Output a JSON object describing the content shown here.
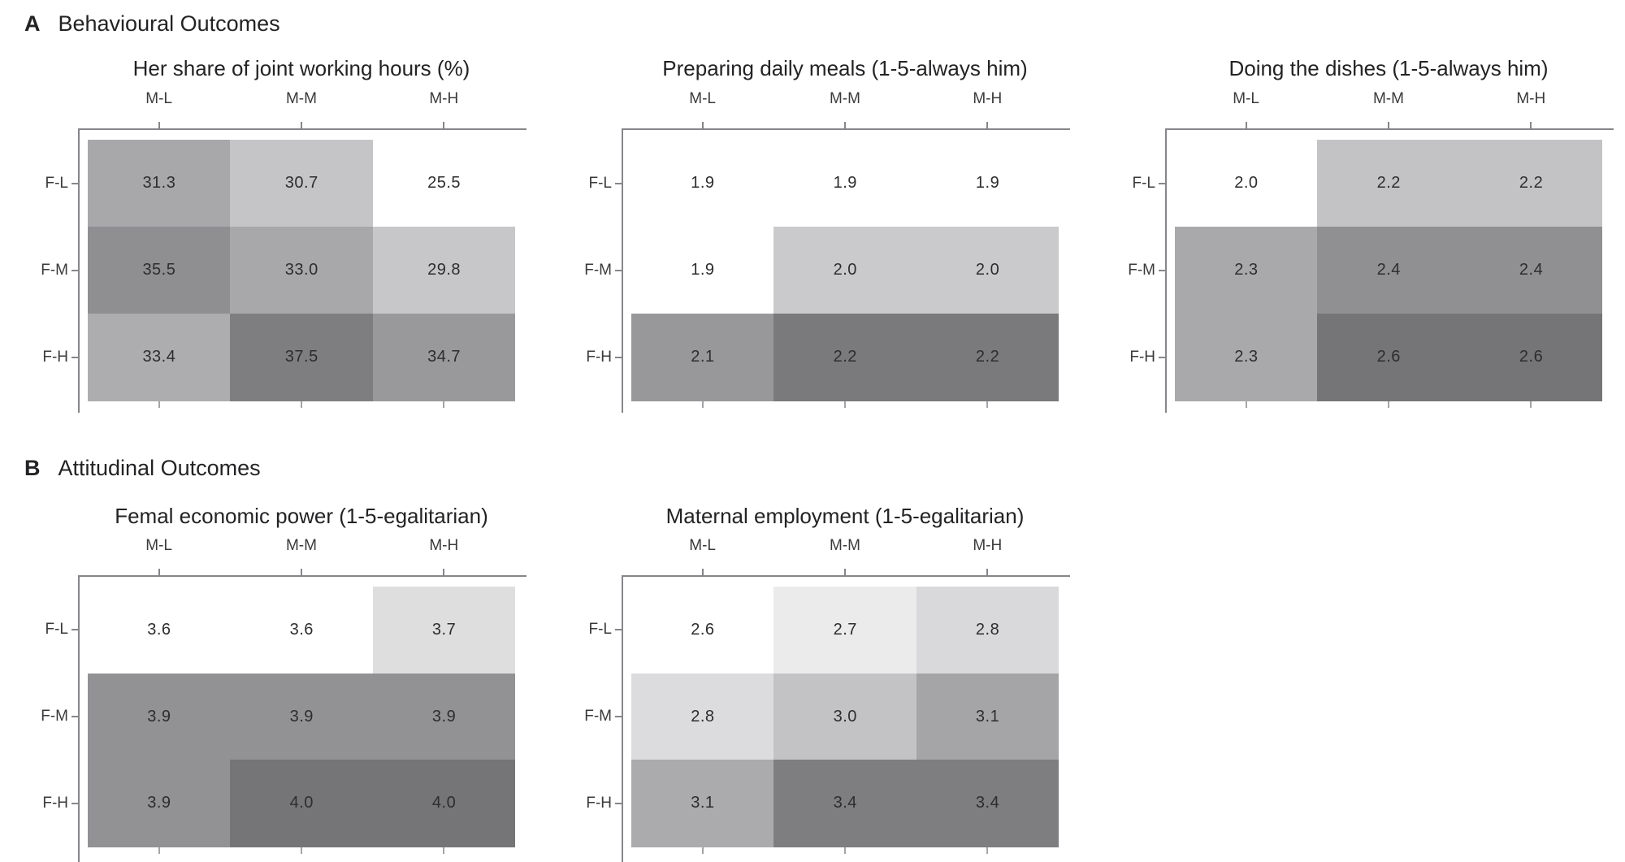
{
  "panel_a": {
    "letter": "A",
    "title": "Behavioural Outcomes"
  },
  "panel_b": {
    "letter": "B",
    "title": "Attitudinal Outcomes"
  },
  "axis": {
    "col_labels": [
      "M-L",
      "M-M",
      "M-H"
    ],
    "row_labels": [
      "F-L",
      "F-M",
      "F-H"
    ]
  },
  "colors": {
    "background": "#ffffff",
    "axis_line": "#86868a",
    "title_text": "#232325",
    "label_text": "#3a3a3c",
    "value_text": "#2d2d2f"
  },
  "chart_data": [
    {
      "id": "working-hours",
      "panel": "A",
      "type": "heatmap",
      "title": "Her share of joint working hours (%)",
      "x": [
        "M-L",
        "M-M",
        "M-H"
      ],
      "y": [
        "F-L",
        "F-M",
        "F-H"
      ],
      "values": [
        [
          31.3,
          30.7,
          25.5
        ],
        [
          35.5,
          33.0,
          29.8
        ],
        [
          33.4,
          37.5,
          34.7
        ]
      ],
      "value_labels": [
        [
          "31.3",
          "30.7",
          "25.5"
        ],
        [
          "35.5",
          "33.0",
          "29.8"
        ],
        [
          "33.4",
          "37.5",
          "34.7"
        ]
      ],
      "cell_colors": [
        [
          "#a8a8aa",
          "#c5c5c7",
          "#ffffff"
        ],
        [
          "#8f8f92",
          "#a8a8aa",
          "#c7c7c9"
        ],
        [
          "#adadaf",
          "#7e7e81",
          "#99999b"
        ]
      ]
    },
    {
      "id": "preparing-meals",
      "panel": "A",
      "type": "heatmap",
      "title": "Preparing daily meals (1-5-always him)",
      "x": [
        "M-L",
        "M-M",
        "M-H"
      ],
      "y": [
        "F-L",
        "F-M",
        "F-H"
      ],
      "values": [
        [
          1.9,
          1.9,
          1.9
        ],
        [
          1.9,
          2.0,
          2.0
        ],
        [
          2.1,
          2.2,
          2.2
        ]
      ],
      "value_labels": [
        [
          "1.9",
          "1.9",
          "1.9"
        ],
        [
          "1.9",
          "2.0",
          "2.0"
        ],
        [
          "2.1",
          "2.2",
          "2.2"
        ]
      ],
      "cell_colors": [
        [
          "#ffffff",
          "#ffffff",
          "#ffffff"
        ],
        [
          "#ffffff",
          "#cacacc",
          "#cacacc"
        ],
        [
          "#98989b",
          "#7a7a7d",
          "#7a7a7d"
        ]
      ]
    },
    {
      "id": "doing-dishes",
      "panel": "A",
      "type": "heatmap",
      "title": "Doing the dishes (1-5-always him)",
      "x": [
        "M-L",
        "M-M",
        "M-H"
      ],
      "y": [
        "F-L",
        "F-M",
        "F-H"
      ],
      "values": [
        [
          2.0,
          2.2,
          2.2
        ],
        [
          2.3,
          2.4,
          2.4
        ],
        [
          2.3,
          2.6,
          2.6
        ]
      ],
      "value_labels": [
        [
          "2.0",
          "2.2",
          "2.2"
        ],
        [
          "2.3",
          "2.4",
          "2.4"
        ],
        [
          "2.3",
          "2.6",
          "2.6"
        ]
      ],
      "cell_colors": [
        [
          "#ffffff",
          "#c3c3c5",
          "#c3c3c5"
        ],
        [
          "#a9a9ab",
          "#909092",
          "#909092"
        ],
        [
          "#a9a9ab",
          "#757578",
          "#757578"
        ]
      ]
    },
    {
      "id": "female-economic-power",
      "panel": "B",
      "type": "heatmap",
      "title": "Femal economic power (1-5-egalitarian)",
      "x": [
        "M-L",
        "M-M",
        "M-H"
      ],
      "y": [
        "F-L",
        "F-M",
        "F-H"
      ],
      "values": [
        [
          3.6,
          3.6,
          3.7
        ],
        [
          3.9,
          3.9,
          3.9
        ],
        [
          3.9,
          4.0,
          4.0
        ]
      ],
      "value_labels": [
        [
          "3.6",
          "3.6",
          "3.7"
        ],
        [
          "3.9",
          "3.9",
          "3.9"
        ],
        [
          "3.9",
          "4.0",
          "4.0"
        ]
      ],
      "cell_colors": [
        [
          "#ffffff",
          "#ffffff",
          "#dededf"
        ],
        [
          "#929295",
          "#929295",
          "#929295"
        ],
        [
          "#929295",
          "#757578",
          "#757578"
        ]
      ]
    },
    {
      "id": "maternal-employment",
      "panel": "B",
      "type": "heatmap",
      "title": "Maternal employment (1-5-egalitarian)",
      "x": [
        "M-L",
        "M-M",
        "M-H"
      ],
      "y": [
        "F-L",
        "F-M",
        "F-H"
      ],
      "values": [
        [
          2.6,
          2.7,
          2.8
        ],
        [
          2.8,
          3.0,
          3.1
        ],
        [
          3.1,
          3.4,
          3.4
        ]
      ],
      "value_labels": [
        [
          "2.6",
          "2.7",
          "2.8"
        ],
        [
          "2.8",
          "3.0",
          "3.1"
        ],
        [
          "3.1",
          "3.4",
          "3.4"
        ]
      ],
      "cell_colors": [
        [
          "#ffffff",
          "#ebebec",
          "#d9d9db"
        ],
        [
          "#dcdcde",
          "#c3c3c5",
          "#a5a5a7"
        ],
        [
          "#ababad",
          "#7e7e81",
          "#7e7e81"
        ]
      ]
    }
  ]
}
